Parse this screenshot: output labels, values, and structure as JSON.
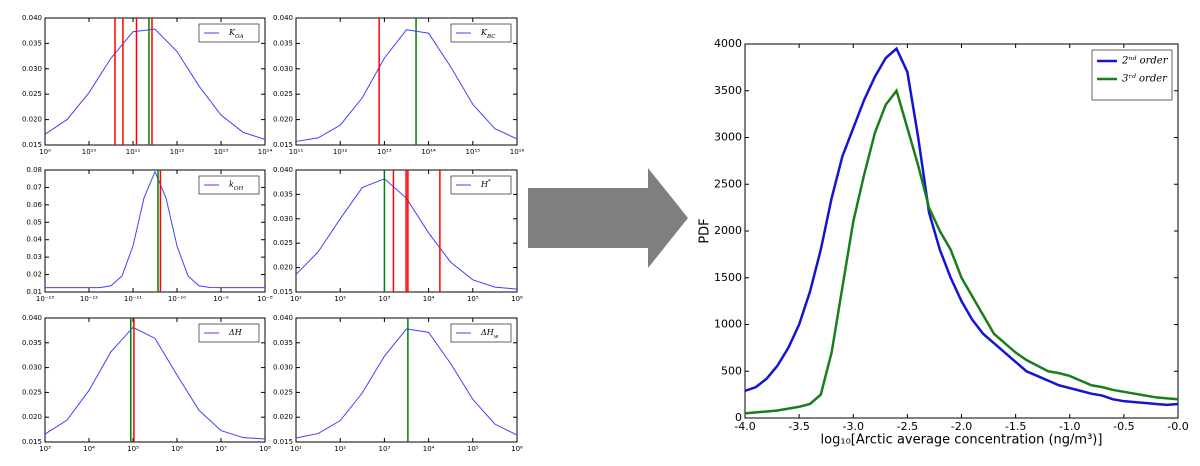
{
  "chart_data": [
    {
      "type": "line",
      "xscale": "log",
      "legend": "upper right",
      "x": [
        1000000000.0,
        3160000000.0,
        10000000000.0,
        31600000000.0,
        100000000000.0,
        316000000000.0,
        1000000000000.0,
        3160000000000.0,
        10000000000000.0,
        31600000000000.0,
        100000000000000.0
      ],
      "series": [
        {
          "name": "K_OA",
          "color": "#4040ff",
          "values": [
            0.0171,
            0.02,
            0.0253,
            0.0321,
            0.0373,
            0.0378,
            0.0334,
            0.0266,
            0.0209,
            0.0175,
            0.0161
          ]
        }
      ],
      "vlines": [
        {
          "x": 39000000000.0,
          "color": "#ff0000"
        },
        {
          "x": 59000000000.0,
          "color": "#ff0000"
        },
        {
          "x": 120000000000.0,
          "color": "#ff0000"
        },
        {
          "x": 270000000000.0,
          "color": "#ff0000"
        },
        {
          "x": 230000000000.0,
          "color": "#008000"
        }
      ],
      "xlim": [
        1000000000.0,
        100000000000000.0
      ],
      "xticks": [
        {
          "value": 1000000000.0,
          "label": "10⁹"
        },
        {
          "value": 10000000000.0,
          "label": "10¹⁰"
        },
        {
          "value": 100000000000.0,
          "label": "10¹¹"
        },
        {
          "value": 1000000000000.0,
          "label": "10¹²"
        },
        {
          "value": 10000000000000.0,
          "label": "10¹³"
        },
        {
          "value": 100000000000000.0,
          "label": "10¹⁴"
        }
      ],
      "ylim": [
        0.015,
        0.04
      ],
      "yticks": [
        0.015,
        {
          "value": 0.02,
          "label": "0.020"
        },
        0.025,
        {
          "value": 0.03,
          "label": "0.030"
        },
        0.035,
        {
          "value": 0.04,
          "label": "0.040"
        }
      ]
    },
    {
      "type": "line",
      "xscale": "log",
      "legend": "upper right",
      "x": [
        100000000000.0,
        316000000000.0,
        1000000000000.0,
        3160000000000.0,
        10000000000000.0,
        31600000000000.0,
        100000000000000.0,
        316000000000000.0,
        1000000000000000.0,
        3160000000000000.0,
        1e+16
      ],
      "series": [
        {
          "name": "K_BC",
          "color": "#4040ff",
          "values": [
            0.0157,
            0.0164,
            0.0189,
            0.0243,
            0.0321,
            0.0377,
            0.037,
            0.0304,
            0.023,
            0.0182,
            0.0162
          ]
        }
      ],
      "vlines": [
        {
          "x": 7600000000000.0,
          "color": "#ff0000"
        },
        {
          "x": 52000000000000.0,
          "color": "#008000"
        }
      ],
      "xlim": [
        100000000000.0,
        1e+16
      ],
      "xticks": [
        {
          "value": 100000000000.0,
          "label": "10¹¹"
        },
        {
          "value": 1000000000000.0,
          "label": "10¹²"
        },
        {
          "value": 10000000000000.0,
          "label": "10¹³"
        },
        {
          "value": 100000000000000.0,
          "label": "10¹⁴"
        },
        {
          "value": 1000000000000000.0,
          "label": "10¹⁵"
        },
        {
          "value": 1e+16,
          "label": "10¹⁶"
        }
      ],
      "ylim": [
        0.015,
        0.04
      ],
      "yticks": [
        0.015,
        {
          "value": 0.02,
          "label": "0.020"
        },
        0.025,
        {
          "value": 0.03,
          "label": "0.030"
        },
        0.035,
        {
          "value": 0.04,
          "label": "0.040"
        }
      ]
    },
    {
      "type": "line",
      "xscale": "log",
      "legend": "upper right",
      "x": [
        1e-13,
        1.78e-13,
        3.16e-13,
        5.62e-13,
        1e-12,
        1.78e-12,
        3.16e-12,
        5.62e-12,
        1e-11,
        1.78e-11,
        3.16e-11,
        5.62e-11,
        1e-10,
        1.78e-10,
        3.16e-10,
        5.62e-10,
        1e-09,
        1.78e-09,
        3.16e-09,
        5.62e-09,
        1e-08
      ],
      "series": [
        {
          "name": "k_OH",
          "color": "#4040ff",
          "values": [
            0.0125,
            0.0125,
            0.0125,
            0.0125,
            0.0125,
            0.0125,
            0.0136,
            0.0192,
            0.0364,
            0.064,
            0.079,
            0.064,
            0.0364,
            0.0192,
            0.0136,
            0.0126,
            0.0125,
            0.0125,
            0.0125,
            0.0125,
            0.0125
          ]
        }
      ],
      "vlines": [
        {
          "x": 4.2e-11,
          "color": "#ff0000"
        },
        {
          "x": 3.7e-11,
          "color": "#008000"
        }
      ],
      "xlim": [
        1e-13,
        1e-08
      ],
      "xticks": [
        {
          "value": 1e-13,
          "label": "10⁻¹³"
        },
        {
          "value": 1e-12,
          "label": "10⁻¹²"
        },
        {
          "value": 1e-11,
          "label": "10⁻¹¹"
        },
        {
          "value": 1e-10,
          "label": "10⁻¹⁰"
        },
        {
          "value": 1e-09,
          "label": "10⁻⁹"
        },
        {
          "value": 1e-08,
          "label": "10⁻⁸"
        }
      ],
      "ylim": [
        0.01,
        0.08
      ],
      "yticks": [
        0.01,
        0.02,
        0.03,
        0.04,
        0.05,
        0.06,
        0.07,
        0.08
      ]
    },
    {
      "type": "line",
      "xscale": "log",
      "legend": "upper right",
      "x": [
        10,
        31.6,
        100,
        316,
        1000,
        3160,
        10000,
        31600,
        100000,
        316000,
        1000000
      ],
      "series": [
        {
          "name": "H^*",
          "color": "#4040ff",
          "values": [
            0.0186,
            0.0232,
            0.03,
            0.0364,
            0.0382,
            0.0342,
            0.0271,
            0.0211,
            0.0175,
            0.016,
            0.0156
          ]
        }
      ],
      "vlines": [
        {
          "x": 1600,
          "color": "#ff0000"
        },
        {
          "x": 3100,
          "color": "#ff0000"
        },
        {
          "x": 3400,
          "color": "#ff0000"
        },
        {
          "x": 18000,
          "color": "#ff0000"
        },
        {
          "x": 1000,
          "color": "#008000"
        }
      ],
      "xlim": [
        10,
        1000000
      ],
      "xticks": [
        {
          "value": 10,
          "label": "10¹"
        },
        {
          "value": 100,
          "label": "10²"
        },
        {
          "value": 1000,
          "label": "10³"
        },
        {
          "value": 10000,
          "label": "10⁴"
        },
        {
          "value": 100000,
          "label": "10⁵"
        },
        {
          "value": 1000000,
          "label": "10⁶"
        }
      ],
      "ylim": [
        0.015,
        0.04
      ],
      "yticks": [
        0.015,
        {
          "value": 0.02,
          "label": "0.020"
        },
        0.025,
        {
          "value": 0.03,
          "label": "0.030"
        },
        0.035,
        {
          "value": 0.04,
          "label": "0.040"
        }
      ]
    },
    {
      "type": "line",
      "xscale": "log",
      "legend": "upper right",
      "x": [
        1000,
        3160,
        10000,
        31600,
        100000,
        316000,
        1000000,
        3160000,
        10000000,
        31600000,
        100000000
      ],
      "series": [
        {
          "name": "ΔH",
          "color": "#4040ff",
          "values": [
            0.0166,
            0.0194,
            0.0254,
            0.0332,
            0.0381,
            0.0359,
            0.0285,
            0.0214,
            0.0173,
            0.0159,
            0.0156
          ]
        }
      ],
      "vlines": [
        {
          "x": 105000,
          "color": "#ff0000"
        },
        {
          "x": 89000,
          "color": "#008000"
        }
      ],
      "xlim": [
        1000,
        100000000
      ],
      "xticks": [
        {
          "value": 1000,
          "label": "10³"
        },
        {
          "value": 10000,
          "label": "10⁴"
        },
        {
          "value": 100000,
          "label": "10⁵"
        },
        {
          "value": 1000000,
          "label": "10⁶"
        },
        {
          "value": 10000000,
          "label": "10⁷"
        },
        {
          "value": 100000000,
          "label": "10⁸"
        }
      ],
      "ylim": [
        0.015,
        0.04
      ],
      "yticks": [
        0.015,
        {
          "value": 0.02,
          "label": "0.020"
        },
        0.025,
        {
          "value": 0.03,
          "label": "0.030"
        },
        0.035,
        {
          "value": 0.04,
          "label": "0.040"
        }
      ]
    },
    {
      "type": "line",
      "xscale": "log",
      "legend": "upper right",
      "x": [
        10,
        31.6,
        100,
        316,
        1000,
        3160,
        10000,
        31600,
        100000,
        316000,
        1000000
      ],
      "series": [
        {
          "name": "ΔH_w",
          "color": "#4040ff",
          "values": [
            0.0158,
            0.0167,
            0.0193,
            0.0249,
            0.0323,
            0.0378,
            0.0371,
            0.0308,
            0.0236,
            0.0186,
            0.0164
          ]
        }
      ],
      "vlines": [
        {
          "x": 3400,
          "color": "#008000"
        }
      ],
      "xlim": [
        10,
        1000000
      ],
      "xticks": [
        {
          "value": 10,
          "label": "10¹"
        },
        {
          "value": 100,
          "label": "10²"
        },
        {
          "value": 1000,
          "label": "10³"
        },
        {
          "value": 10000,
          "label": "10⁴"
        },
        {
          "value": 100000,
          "label": "10⁵"
        },
        {
          "value": 1000000,
          "label": "10⁶"
        }
      ],
      "ylim": [
        0.015,
        0.04
      ],
      "yticks": [
        0.015,
        {
          "value": 0.02,
          "label": "0.020"
        },
        0.025,
        {
          "value": 0.03,
          "label": "0.030"
        },
        0.035,
        {
          "value": 0.04,
          "label": "0.040"
        }
      ]
    },
    {
      "type": "line",
      "legend": "upper right",
      "xlabel": "log₁₀[Arctic average concentration (ng/m³)]",
      "ylabel": "PDF",
      "x": [
        -4.0,
        -3.9,
        -3.8,
        -3.7,
        -3.6,
        -3.5,
        -3.4,
        -3.3,
        -3.2,
        -3.1,
        -3.0,
        -2.9,
        -2.8,
        -2.7,
        -2.6,
        -2.5,
        -2.4,
        -2.3,
        -2.2,
        -2.1,
        -2.0,
        -1.9,
        -1.8,
        -1.7,
        -1.6,
        -1.5,
        -1.4,
        -1.3,
        -1.2,
        -1.1,
        -1.0,
        -0.9,
        -0.8,
        -0.7,
        -0.6,
        -0.5,
        -0.4,
        -0.3,
        -0.2,
        -0.1,
        0.0
      ],
      "series": [
        {
          "name": "2ⁿᵈ order",
          "color": "#1414d2",
          "values": [
            290,
            330,
            420,
            560,
            750,
            1000,
            1350,
            1800,
            2350,
            2800,
            3100,
            3400,
            3650,
            3850,
            3950,
            3700,
            3000,
            2200,
            1800,
            1500,
            1250,
            1050,
            900,
            800,
            700,
            600,
            500,
            450,
            400,
            350,
            320,
            290,
            260,
            240,
            200,
            180,
            170,
            160,
            150,
            140,
            150
          ]
        },
        {
          "name": "3ʳᵈ order",
          "color": "#1a7f1a",
          "values": [
            50,
            60,
            70,
            80,
            100,
            120,
            150,
            250,
            700,
            1400,
            2100,
            2600,
            3050,
            3350,
            3500,
            3100,
            2700,
            2250,
            2000,
            1800,
            1500,
            1300,
            1100,
            900,
            800,
            700,
            620,
            560,
            500,
            480,
            450,
            400,
            350,
            330,
            300,
            280,
            260,
            240,
            220,
            210,
            200
          ]
        }
      ],
      "xlim": [
        -4.0,
        0.0
      ],
      "xticks": [
        {
          "value": -4.0,
          "label": "-4.0"
        },
        {
          "value": -3.5,
          "label": "-3.5"
        },
        {
          "value": -3.0,
          "label": "-3.0"
        },
        {
          "value": -2.5,
          "label": "-2.5"
        },
        {
          "value": -2.0,
          "label": "-2.0"
        },
        {
          "value": -1.5,
          "label": "-1.5"
        },
        {
          "value": -1.0,
          "label": "-1.0"
        },
        {
          "value": -0.5,
          "label": "-0.5"
        },
        {
          "value": 0.0,
          "label": "-0.0"
        }
      ],
      "ylim": [
        0,
        4000
      ],
      "yticks": [
        0,
        500,
        1000,
        1500,
        2000,
        2500,
        3000,
        3500,
        4000
      ]
    }
  ]
}
